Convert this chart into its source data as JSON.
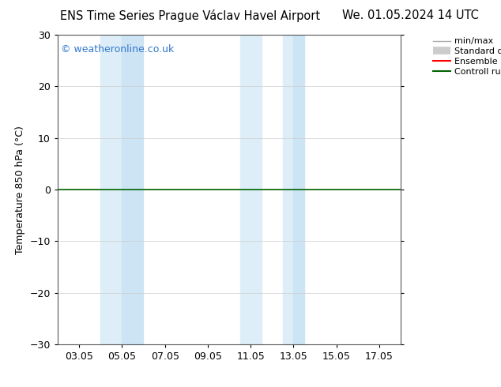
{
  "title_left": "ENS Time Series Prague Václav Havel Airport",
  "title_right": "We. 01.05.2024 14 UTC",
  "ylabel": "Temperature 850 hPa (°C)",
  "watermark": "© weatheronline.co.uk",
  "ylim": [
    -30,
    30
  ],
  "yticks": [
    -30,
    -20,
    -10,
    0,
    10,
    20,
    30
  ],
  "xtick_labels": [
    "03.05",
    "05.05",
    "07.05",
    "09.05",
    "11.05",
    "13.05",
    "15.05",
    "17.05"
  ],
  "xtick_positions": [
    3,
    5,
    7,
    9,
    11,
    13,
    15,
    17
  ],
  "xlim": [
    2.0,
    18.0
  ],
  "shaded_regions": [
    {
      "xmin": 4.0,
      "xmax": 5.0,
      "color": "#ddeef8",
      "alpha": 1.0
    },
    {
      "xmin": 5.0,
      "xmax": 6.0,
      "color": "#cce4f4",
      "alpha": 1.0
    },
    {
      "xmin": 10.5,
      "xmax": 11.5,
      "color": "#ddeef8",
      "alpha": 1.0
    },
    {
      "xmin": 12.5,
      "xmax": 13.0,
      "color": "#ddeef8",
      "alpha": 1.0
    },
    {
      "xmin": 13.0,
      "xmax": 13.5,
      "color": "#cce4f4",
      "alpha": 1.0
    }
  ],
  "hline_y": 0,
  "hline_color": "#006400",
  "hline_lw": 1.2,
  "bg_color": "#ffffff",
  "plot_bg_color": "#ffffff",
  "title_fontsize": 10.5,
  "watermark_color": "#3377cc",
  "watermark_fontsize": 9,
  "ylabel_fontsize": 9,
  "tick_fontsize": 9
}
